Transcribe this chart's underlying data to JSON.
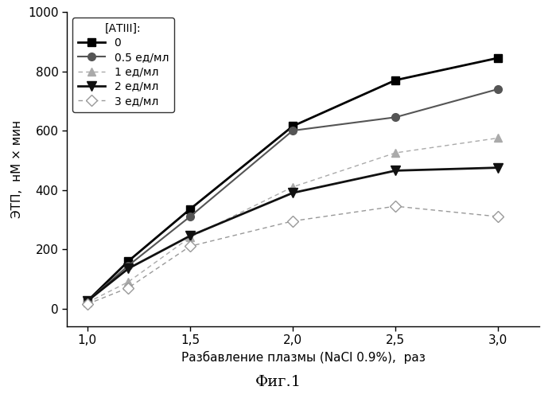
{
  "x": [
    1.0,
    1.2,
    1.5,
    2.0,
    2.5,
    3.0
  ],
  "series": [
    {
      "label": "0",
      "y": [
        25,
        160,
        335,
        615,
        770,
        845
      ],
      "color": "#000000",
      "linestyle": "-",
      "linewidth": 2.0,
      "marker": "s",
      "markersize": 7,
      "markerfacecolor": "#000000",
      "markeredgecolor": "#000000"
    },
    {
      "label": "0.5 ед/мл",
      "y": [
        25,
        145,
        310,
        600,
        645,
        740
      ],
      "color": "#555555",
      "linestyle": "-",
      "linewidth": 1.5,
      "marker": "o",
      "markersize": 7,
      "markerfacecolor": "#555555",
      "markeredgecolor": "#555555"
    },
    {
      "label": "1 ед/мл",
      "y": [
        20,
        90,
        240,
        410,
        525,
        575
      ],
      "color": "#aaaaaa",
      "linestyle": "--",
      "linewidth": 1.0,
      "marker": "^",
      "markersize": 7,
      "markerfacecolor": "#aaaaaa",
      "markeredgecolor": "#aaaaaa",
      "dashes": [
        4,
        3
      ]
    },
    {
      "label": "2 ед/мл",
      "y": [
        25,
        135,
        245,
        390,
        465,
        475
      ],
      "color": "#111111",
      "linestyle": "-",
      "linewidth": 2.0,
      "marker": "v",
      "markersize": 8,
      "markerfacecolor": "#111111",
      "markeredgecolor": "#111111"
    },
    {
      "label": "3 ед/мл",
      "y": [
        15,
        70,
        210,
        295,
        345,
        310
      ],
      "color": "#999999",
      "linestyle": "--",
      "linewidth": 1.0,
      "marker": "D",
      "markersize": 7,
      "markerfacecolor": "white",
      "markeredgecolor": "#999999",
      "dashes": [
        4,
        3
      ]
    }
  ],
  "xlabel": "Разбавление плазмы (NaCl 0.9%),  раз",
  "ylabel": "ЭТП,  нМ × мин",
  "legend_title": "[АТIII]:",
  "title_fig": "Фиг.1",
  "xlim": [
    0.9,
    3.2
  ],
  "ylim": [
    -60,
    1000
  ],
  "xticks": [
    1.0,
    1.5,
    2.0,
    2.5,
    3.0
  ],
  "yticks": [
    0,
    200,
    400,
    600,
    800,
    1000
  ],
  "xtick_labels": [
    "1,0",
    "1,5",
    "2,0",
    "2,5",
    "3,0"
  ],
  "ytick_labels": [
    "0",
    "200",
    "400",
    "600",
    "800",
    "1000"
  ],
  "background_color": "#ffffff",
  "figsize": [
    6.99,
    5.0
  ],
  "dpi": 100
}
